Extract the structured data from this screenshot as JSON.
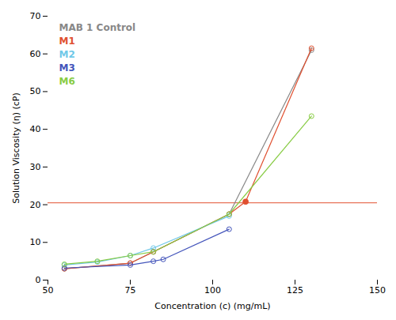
{
  "chart_data": {
    "type": "line",
    "xlabel": "Concentration (c) (mg/mL)",
    "ylabel": "Solution Viscosity (η) (cP)",
    "marker": "circle",
    "grid": false,
    "legend": "top-left",
    "xlim": [
      50,
      150
    ],
    "ylim": [
      0,
      70
    ],
    "xticks": [
      50,
      75,
      100,
      125,
      150
    ],
    "yticks": [
      0,
      10,
      20,
      30,
      40,
      50,
      60,
      70
    ],
    "hline": {
      "y": 20.5,
      "color": "#e8735a"
    },
    "series": [
      {
        "name": "MAB 1 Control",
        "color": "#888888",
        "x": [
          55,
          75,
          82,
          105,
          130
        ],
        "values": [
          3.0,
          4.5,
          7.5,
          17.5,
          61.0
        ]
      },
      {
        "name": "M1",
        "color": "#e05030",
        "x": [
          55,
          75,
          82,
          105,
          110,
          130
        ],
        "values": [
          3.0,
          4.5,
          7.5,
          17.5,
          20.8,
          61.5
        ],
        "highlight": {
          "x": 110,
          "y": 20.8
        }
      },
      {
        "name": "M2",
        "color": "#70c8e8",
        "x": [
          55,
          65,
          75,
          82,
          105
        ],
        "values": [
          4.0,
          4.8,
          6.5,
          8.5,
          17.0
        ]
      },
      {
        "name": "M3",
        "color": "#4455bb",
        "x": [
          55,
          75,
          82,
          85,
          105
        ],
        "values": [
          3.2,
          4.0,
          5.0,
          5.5,
          13.5
        ]
      },
      {
        "name": "M6",
        "color": "#88cc44",
        "x": [
          55,
          65,
          75,
          82,
          105,
          130
        ],
        "values": [
          4.2,
          5.0,
          6.5,
          7.5,
          17.5,
          43.5
        ]
      }
    ]
  }
}
